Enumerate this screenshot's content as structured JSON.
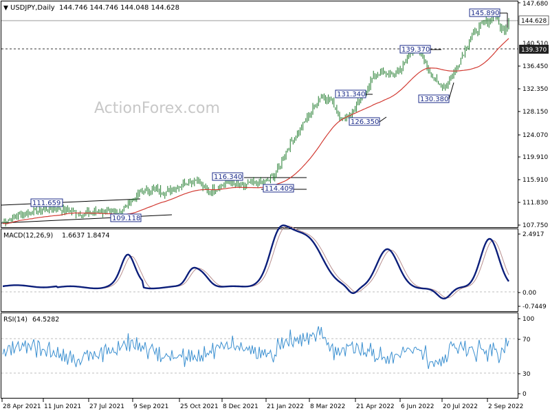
{
  "header": {
    "arrow": "▼",
    "symbol": "USDJPY,Daily",
    "ohlc": "144.746 144.746 144.048 144.628"
  },
  "watermark": "ActionForex.com",
  "colors": {
    "price_bar": "#1e7a2a",
    "ma": "#d23a32",
    "macd": "#0b1e7a",
    "signal": "#b88f8f",
    "rsi": "#3a8fd0",
    "grid": "#bdbdbd",
    "label_border": "#1b2b8a",
    "label_text": "#1b2b8a"
  },
  "chart_data": [
    {
      "type": "ohlc",
      "name": "USDJPY,Daily",
      "ylim": [
        107.75,
        147.68
      ],
      "axis_ticks": [
        "147.680",
        "140.510",
        "136.450",
        "132.350",
        "128.150",
        "124.070",
        "119.910",
        "115.910",
        "111.830",
        "107.750"
      ],
      "current_price": "144.628",
      "reference_level": "139.370",
      "last_bar": {
        "open": 144.746,
        "high": 144.746,
        "low": 144.048,
        "close": 144.628
      },
      "close_path": [
        [
          "28 Apr 2021",
          108.9
        ],
        [
          "11 Jun 2021",
          109.7
        ],
        [
          "27 Jul 2021",
          110.0
        ],
        [
          "9 Sep 2021",
          110.0
        ],
        [
          "25 Oct 2021",
          113.6
        ],
        [
          "8 Dec 2021",
          113.7
        ],
        [
          "21 Jan 2022",
          113.9
        ],
        [
          "8 Mar 2022",
          115.9
        ],
        [
          "21 Apr 2022",
          128.3
        ],
        [
          "6 Jun 2022",
          132.0
        ],
        [
          "20 Jul 2022",
          138.2
        ],
        [
          "2 Sep 2022",
          140.3
        ]
      ],
      "annotations": [
        {
          "label": "111.659"
        },
        {
          "label": "109.118"
        },
        {
          "label": "116.340"
        },
        {
          "label": "114.409"
        },
        {
          "label": "131.340"
        },
        {
          "label": "126.350"
        },
        {
          "label": "139.370"
        },
        {
          "label": "130.380"
        },
        {
          "label": "145.890"
        }
      ]
    },
    {
      "type": "line",
      "name": "MACD(12,26,9)",
      "values_label": "1.6637 1.8474",
      "axis_ticks": [
        "2.4917",
        "0.00",
        "-0.7449"
      ],
      "ylim": [
        -0.7449,
        2.4917
      ],
      "series": [
        {
          "name": "MACD",
          "last": 1.6637
        },
        {
          "name": "Signal",
          "last": 1.8474
        }
      ]
    },
    {
      "type": "line",
      "name": "RSI(14)",
      "values_label": "64.5282",
      "axis_ticks": [
        "100",
        "70",
        "30",
        "0"
      ],
      "ylim": [
        0,
        100
      ],
      "last": 64.5282
    }
  ],
  "x_axis": {
    "ticks": [
      "28 Apr 2021",
      "11 Jun 2021",
      "27 Jul 2021",
      "9 Sep 2021",
      "25 Oct 2021",
      "8 Dec 2021",
      "21 Jan 2022",
      "8 Mar 2022",
      "21 Apr 2022",
      "6 Jun 2022",
      "20 Jul 2022",
      "2 Sep 2022"
    ]
  }
}
